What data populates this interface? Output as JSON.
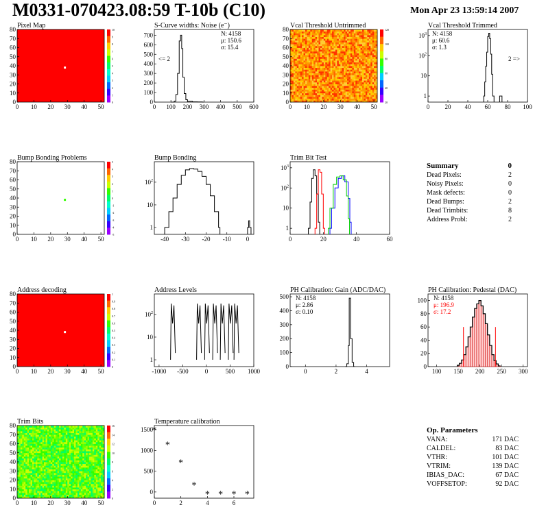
{
  "header": {
    "title": "M0331-070423.08:59 T-10b (C10)",
    "date": "Mon Apr 23 13:59:14 2007"
  },
  "chart_data": [
    {
      "id": "pixel-map",
      "type": "heatmap",
      "title": "Pixel Map",
      "xlim": [
        0,
        52
      ],
      "ylim": [
        0,
        80
      ],
      "xticks": [
        0,
        10,
        20,
        30,
        40,
        50
      ],
      "yticks": [
        0,
        10,
        20,
        30,
        40,
        50,
        60,
        70,
        80
      ],
      "fill": "#ff0000",
      "dots": [
        {
          "x": 28.5,
          "y": 38,
          "color": "#ffffff"
        }
      ],
      "colorbar": {
        "ticks": [
          "10",
          "9",
          "8",
          "7",
          "6",
          "5",
          "4",
          "3",
          "2",
          "1",
          "0"
        ],
        "colors": [
          "#ff0000",
          "#ff6600",
          "#ffcc00",
          "#ccff00",
          "#33ff00",
          "#00ff66",
          "#00ffcc",
          "#00ccff",
          "#0066ff",
          "#3300ff",
          "#9900ff"
        ]
      }
    },
    {
      "id": "noise",
      "type": "line",
      "title": "S-Curve widths: Noise (e⁻)",
      "xlim": [
        0,
        600
      ],
      "ylim": [
        0,
        760
      ],
      "xticks": [
        0,
        100,
        200,
        300,
        400,
        500,
        600
      ],
      "yticks": [
        0,
        100,
        200,
        300,
        400,
        500,
        600,
        700
      ],
      "stats": [
        "N: 4158",
        "μ: 150.6",
        "σ: 15.4"
      ],
      "note": "<= 2",
      "series": [
        {
          "color": "#000000",
          "points": [
            [
              100,
              0
            ],
            [
              120,
              10
            ],
            [
              130,
              80
            ],
            [
              140,
              300
            ],
            [
              150,
              640
            ],
            [
              158,
              700
            ],
            [
              165,
              560
            ],
            [
              172,
              260
            ],
            [
              180,
              90
            ],
            [
              190,
              25
            ],
            [
              200,
              8
            ],
            [
              230,
              3
            ],
            [
              260,
              2
            ],
            [
              290,
              0
            ]
          ]
        }
      ]
    },
    {
      "id": "vcal-untrimmed",
      "type": "heatmap",
      "title": "Vcal Threshold Untrimmed",
      "xlim": [
        0,
        52
      ],
      "ylim": [
        0,
        80
      ],
      "xticks": [
        0,
        10,
        20,
        30,
        40,
        50
      ],
      "yticks": [
        0,
        10,
        20,
        30,
        40,
        50,
        60,
        70,
        80
      ],
      "fill": "noise",
      "colorbar": {
        "ticks": [
          "120",
          "100",
          "80",
          "60",
          "40",
          "20"
        ],
        "colors": [
          "#ff0000",
          "#ff6600",
          "#ffcc00",
          "#ccff00",
          "#33ff00",
          "#00ff66",
          "#00ccff",
          "#0066ff",
          "#3300ff",
          "#9900ff"
        ]
      }
    },
    {
      "id": "vcal-trimmed",
      "type": "line",
      "title": "Vcal Threshold Trimmed",
      "xlim": [
        0,
        100
      ],
      "ylim": [
        0.5,
        2000
      ],
      "log_y": true,
      "xticks": [
        0,
        20,
        40,
        60,
        80,
        100
      ],
      "yticks": [
        1,
        10,
        100,
        1000
      ],
      "stats": [
        "N: 4158",
        "μ: 60.6",
        "σ:  1.3"
      ],
      "note": "2 =>",
      "series": [
        {
          "color": "#000000",
          "points": [
            [
              56,
              1
            ],
            [
              57,
              5
            ],
            [
              58,
              30
            ],
            [
              59,
              150
            ],
            [
              60,
              900
            ],
            [
              61,
              1300
            ],
            [
              62,
              700
            ],
            [
              63,
              120
            ],
            [
              64,
              12
            ],
            [
              65,
              1
            ]
          ]
        },
        {
          "color": "#000000",
          "points": [
            [
              72,
              1
            ],
            [
              73,
              1
            ]
          ]
        }
      ]
    },
    {
      "id": "bump-problems",
      "type": "heatmap",
      "title": "Bump Bonding Problems",
      "xlim": [
        0,
        52
      ],
      "ylim": [
        0,
        80
      ],
      "xticks": [
        0,
        10,
        20,
        30,
        40,
        50
      ],
      "yticks": [
        0,
        10,
        20,
        30,
        40,
        50,
        60,
        70,
        80
      ],
      "fill": "#ffffff",
      "dots": [
        {
          "x": 28.5,
          "y": 38,
          "color": "#33ff00"
        }
      ],
      "colorbar": {
        "ticks": [
          "5",
          "4",
          "3",
          "2",
          "1",
          "0",
          "-1",
          "-2",
          "-3",
          "-4",
          "-5"
        ],
        "colors": [
          "#ff0000",
          "#ff6600",
          "#ffcc00",
          "#ccff00",
          "#33ff00",
          "#00ff66",
          "#00ffcc",
          "#00ccff",
          "#0066ff",
          "#3300ff",
          "#9900ff"
        ]
      }
    },
    {
      "id": "bump-bonding",
      "type": "line",
      "title": "Bump Bonding",
      "xlim": [
        -45,
        3
      ],
      "ylim": [
        0.5,
        800
      ],
      "log_y": true,
      "xticks": [
        -40,
        -30,
        -20,
        -10,
        0
      ],
      "yticks": [
        1,
        10,
        100
      ],
      "series": [
        {
          "color": "#000000",
          "points": [
            [
              -40,
              1
            ],
            [
              -38,
              5
            ],
            [
              -36,
              20
            ],
            [
              -34,
              80
            ],
            [
              -32,
              200
            ],
            [
              -30,
              350
            ],
            [
              -28,
              400
            ],
            [
              -26,
              380
            ],
            [
              -24,
              300
            ],
            [
              -22,
              180
            ],
            [
              -20,
              80
            ],
            [
              -18,
              25
            ],
            [
              -16,
              5
            ],
            [
              -14,
              1
            ]
          ]
        },
        {
          "color": "#000000",
          "points": [
            [
              0,
              1
            ],
            [
              0.5,
              2
            ],
            [
              1,
              1
            ]
          ]
        }
      ]
    },
    {
      "id": "trim-bit",
      "type": "line",
      "title": "Trim Bit Test",
      "xlim": [
        0,
        60
      ],
      "ylim": [
        0.5,
        2000
      ],
      "log_y": true,
      "xticks": [
        0,
        20,
        40,
        60
      ],
      "yticks": [
        1,
        10,
        100,
        1000
      ],
      "series": [
        {
          "color": "#000000",
          "points": [
            [
              11,
              1
            ],
            [
              12,
              20
            ],
            [
              13,
              300
            ],
            [
              14,
              800
            ],
            [
              15,
              400
            ],
            [
              16,
              50
            ],
            [
              17,
              2
            ]
          ]
        },
        {
          "color": "#ff0000",
          "points": [
            [
              15,
              1
            ],
            [
              16,
              50
            ],
            [
              17,
              800
            ],
            [
              18,
              600
            ],
            [
              19,
              50
            ],
            [
              20,
              1
            ]
          ]
        },
        {
          "color": "#0000ff",
          "points": [
            [
              24,
              1
            ],
            [
              25,
              10
            ],
            [
              27,
              100
            ],
            [
              29,
              300
            ],
            [
              31,
              400
            ],
            [
              33,
              200
            ],
            [
              35,
              30
            ],
            [
              36,
              2
            ]
          ]
        },
        {
          "color": "#00cc00",
          "points": [
            [
              23,
              1
            ],
            [
              24,
              10
            ],
            [
              26,
              150
            ],
            [
              28,
              350
            ],
            [
              30,
              400
            ],
            [
              32,
              250
            ],
            [
              34,
              40
            ],
            [
              35,
              3
            ]
          ]
        }
      ]
    },
    {
      "id": "address-decoding",
      "type": "heatmap",
      "title": "Address decoding",
      "xlim": [
        0,
        52
      ],
      "ylim": [
        0,
        80
      ],
      "xticks": [
        0,
        10,
        20,
        30,
        40,
        50
      ],
      "yticks": [
        0,
        10,
        20,
        30,
        40,
        50,
        60,
        70,
        80
      ],
      "fill": "#ff0000",
      "dots": [
        {
          "x": 28.5,
          "y": 38,
          "color": "#ffffff"
        }
      ],
      "colorbar": {
        "ticks": [
          "1",
          "0.9",
          "0.8",
          "0.7",
          "0.6",
          "0.5",
          "0.4",
          "0.3",
          "0.2",
          "0.1",
          "0"
        ],
        "colors": [
          "#ff0000",
          "#ff6600",
          "#ffcc00",
          "#ccff00",
          "#33ff00",
          "#00ff66",
          "#00ffcc",
          "#00ccff",
          "#0066ff",
          "#3300ff",
          "#9900ff"
        ]
      }
    },
    {
      "id": "address-levels",
      "type": "line",
      "title": "Address Levels",
      "xlim": [
        -1100,
        1000
      ],
      "ylim": [
        0.5,
        800
      ],
      "log_y": true,
      "xticks": [
        -1000,
        -500,
        0,
        500,
        1000
      ],
      "yticks": [
        1,
        10,
        100
      ],
      "peaks": [
        -700,
        -150,
        20,
        190,
        350,
        520,
        640
      ]
    },
    {
      "id": "ph-gain",
      "type": "line",
      "title": "PH Calibration: Gain (ADC/DAC)",
      "xlim": [
        -1,
        5.5
      ],
      "ylim": [
        0,
        520
      ],
      "xticks": [
        0,
        2,
        4
      ],
      "yticks": [
        0,
        100,
        200,
        300,
        400,
        500
      ],
      "stats": [
        "N: 4158",
        "μ: 2.86",
        "σ: 0.10"
      ],
      "series": [
        {
          "color": "#000000",
          "points": [
            [
              2.6,
              0
            ],
            [
              2.7,
              20
            ],
            [
              2.8,
              150
            ],
            [
              2.86,
              490
            ],
            [
              2.95,
              200
            ],
            [
              3.05,
              30
            ],
            [
              3.15,
              0
            ]
          ]
        }
      ]
    },
    {
      "id": "ph-pedestal",
      "type": "bar",
      "title": "PH Calibration: Pedestal (DAC)",
      "xlim": [
        80,
        310
      ],
      "ylim": [
        0,
        110
      ],
      "xticks": [
        100,
        150,
        200,
        250,
        300
      ],
      "yticks": [
        0,
        20,
        40,
        60,
        80,
        100
      ],
      "stats": [
        "N: 4158",
        "μ: 196.9",
        "σ: 17.2"
      ],
      "stats_colors": [
        "#000000",
        "#ff0000",
        "#ff0000"
      ],
      "hist": {
        "centers": [
          150,
          155,
          160,
          165,
          170,
          175,
          180,
          185,
          190,
          195,
          200,
          205,
          210,
          215,
          220,
          225,
          230,
          235,
          240,
          245
        ],
        "values": [
          2,
          5,
          10,
          18,
          30,
          45,
          60,
          75,
          88,
          95,
          100,
          92,
          80,
          65,
          48,
          32,
          18,
          9,
          4,
          1
        ]
      },
      "vlines": [
        162,
        236
      ]
    },
    {
      "id": "trim-bits",
      "type": "heatmap",
      "title": "Trim Bits",
      "xlim": [
        0,
        52
      ],
      "ylim": [
        0,
        80
      ],
      "xticks": [
        0,
        10,
        20,
        30,
        40,
        50
      ],
      "yticks": [
        0,
        10,
        20,
        30,
        40,
        50,
        60,
        70,
        80
      ],
      "fill": "noise-green",
      "colorbar": {
        "ticks": [
          "16",
          "14",
          "12",
          "10",
          "8",
          "6",
          "4",
          "2",
          "0"
        ],
        "colors": [
          "#ff0000",
          "#ff6600",
          "#ffcc00",
          "#ccff00",
          "#33ff00",
          "#00ff66",
          "#00ffcc",
          "#00ccff",
          "#0066ff",
          "#3300ff",
          "#9900ff"
        ]
      }
    },
    {
      "id": "temperature",
      "type": "scatter",
      "title": "Temperature calibration",
      "xlim": [
        0,
        7.5
      ],
      "ylim": [
        -150,
        1600
      ],
      "xticks": [
        0,
        2,
        4,
        6
      ],
      "yticks": [
        0,
        500,
        1000,
        1500
      ],
      "points": [
        [
          0,
          1500
        ],
        [
          1,
          1150
        ],
        [
          2,
          720
        ],
        [
          3,
          170
        ],
        [
          4,
          -40
        ],
        [
          5,
          -40
        ],
        [
          6,
          -40
        ],
        [
          7,
          -40
        ]
      ]
    }
  ],
  "summary": {
    "title": "Summary",
    "count": "0",
    "rows": [
      {
        "label": "Dead Pixels:",
        "value": "2"
      },
      {
        "label": "Noisy Pixels:",
        "value": "0"
      },
      {
        "label": "Mask defects:",
        "value": "0"
      },
      {
        "label": "Dead Bumps:",
        "value": "2"
      },
      {
        "label": "Dead Trimbits:",
        "value": "8"
      },
      {
        "label": "Address Probl:",
        "value": "2"
      }
    ]
  },
  "op_params": {
    "title": "Op. Parameters",
    "rows": [
      {
        "label": "VANA:",
        "value": "171 DAC"
      },
      {
        "label": "CALDEL:",
        "value": "83 DAC"
      },
      {
        "label": "VTHR:",
        "value": "101 DAC"
      },
      {
        "label": "VTRIM:",
        "value": "139 DAC"
      },
      {
        "label": "IBIAS_DAC:",
        "value": "67 DAC"
      },
      {
        "label": "VOFFSETOP:",
        "value": "92 DAC"
      }
    ]
  }
}
